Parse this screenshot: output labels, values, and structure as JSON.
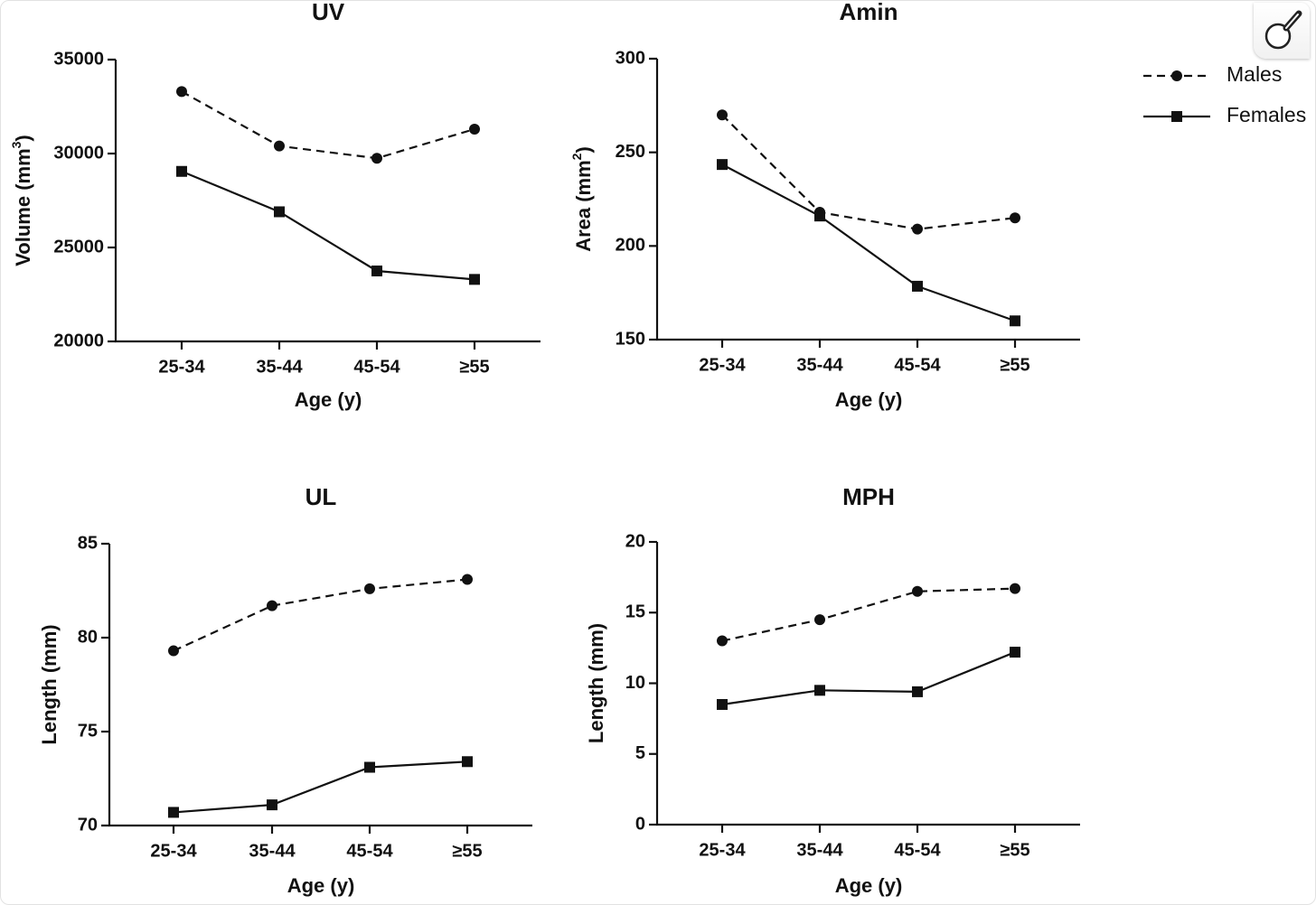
{
  "zoom_icon": "magnifier-icon",
  "colors": {
    "line": "#111111",
    "background": "#ffffff"
  },
  "legend": {
    "males_label": "Males",
    "females_label": "Females"
  },
  "chart_data": [
    {
      "id": "uv",
      "type": "line",
      "title": "UV",
      "xlabel": "Age (y)",
      "ylabel": "Volume (mm",
      "ylabel_sup": "3",
      "ylabel_suffix": ")",
      "categories": [
        "25-34",
        "35-44",
        "45-54",
        "≥55"
      ],
      "ylim": [
        20000,
        35000
      ],
      "yticks": [
        20000,
        25000,
        30000,
        35000
      ],
      "ytick_labels": [
        "20000",
        "25000",
        "30000",
        "35000"
      ],
      "series": [
        {
          "name": "Males",
          "style": "dashed",
          "marker": "circle",
          "values": [
            33300,
            30400,
            29750,
            31300
          ]
        },
        {
          "name": "Females",
          "style": "solid",
          "marker": "square",
          "values": [
            29050,
            26900,
            23750,
            23300
          ]
        }
      ]
    },
    {
      "id": "amin",
      "type": "line",
      "title": "Amin",
      "xlabel": "Age (y)",
      "ylabel": "Area (mm",
      "ylabel_sup": "2",
      "ylabel_suffix": ")",
      "categories": [
        "25-34",
        "35-44",
        "45-54",
        "≥55"
      ],
      "ylim": [
        150,
        300
      ],
      "yticks": [
        150,
        200,
        250,
        300
      ],
      "ytick_labels": [
        "150",
        "200",
        "250",
        "300"
      ],
      "series": [
        {
          "name": "Males",
          "style": "dashed",
          "marker": "circle",
          "values": [
            270,
            218,
            209,
            215
          ]
        },
        {
          "name": "Females",
          "style": "solid",
          "marker": "square",
          "values": [
            243.5,
            216,
            178.5,
            160
          ]
        }
      ]
    },
    {
      "id": "ul",
      "type": "line",
      "title": "UL",
      "xlabel": "Age (y)",
      "ylabel": "Length (mm)",
      "ylabel_sup": "",
      "ylabel_suffix": "",
      "categories": [
        "25-34",
        "35-44",
        "45-54",
        "≥55"
      ],
      "ylim": [
        70,
        85
      ],
      "yticks": [
        70,
        75,
        80,
        85
      ],
      "ytick_labels": [
        "70",
        "75",
        "80",
        "85"
      ],
      "series": [
        {
          "name": "Males",
          "style": "dashed",
          "marker": "circle",
          "values": [
            79.3,
            81.7,
            82.6,
            83.1
          ]
        },
        {
          "name": "Females",
          "style": "solid",
          "marker": "square",
          "values": [
            70.7,
            71.1,
            73.1,
            73.4
          ]
        }
      ]
    },
    {
      "id": "mph",
      "type": "line",
      "title": "MPH",
      "xlabel": "Age (y)",
      "ylabel": "Length (mm)",
      "ylabel_sup": "",
      "ylabel_suffix": "",
      "categories": [
        "25-34",
        "35-44",
        "45-54",
        "≥55"
      ],
      "ylim": [
        0,
        20
      ],
      "yticks": [
        0,
        5,
        10,
        15,
        20
      ],
      "ytick_labels": [
        "0",
        "5",
        "10",
        "15",
        "20"
      ],
      "series": [
        {
          "name": "Males",
          "style": "dashed",
          "marker": "circle",
          "values": [
            13.0,
            14.5,
            16.5,
            16.7
          ]
        },
        {
          "name": "Females",
          "style": "solid",
          "marker": "square",
          "values": [
            8.5,
            9.5,
            9.4,
            12.2
          ]
        }
      ]
    }
  ]
}
